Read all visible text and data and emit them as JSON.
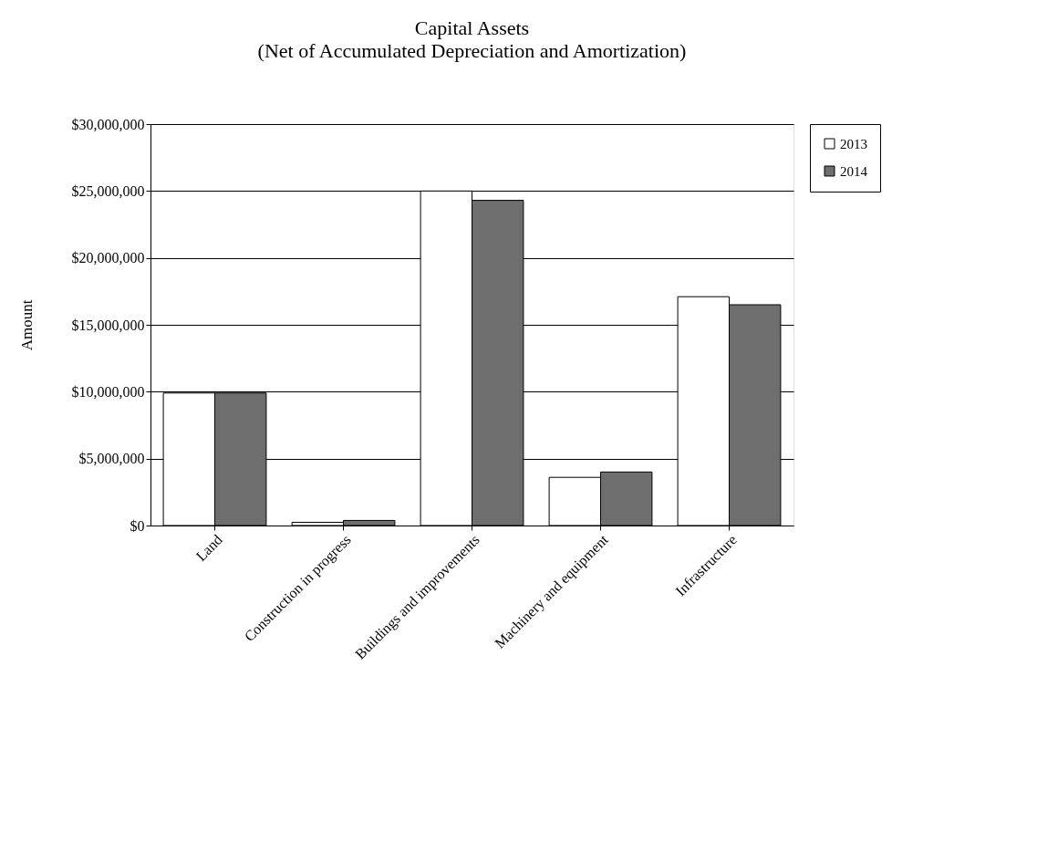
{
  "chart_data": {
    "type": "bar",
    "title": "Capital Assets",
    "subtitle": "(Net of  Accumulated Depreciation and Amortization)",
    "ylabel": "Amount",
    "categories": [
      "Land",
      "Construction in progress",
      "Buildings and improvements",
      "Machinery and equipment",
      "Infrastructure"
    ],
    "series": [
      {
        "name": "2013",
        "color": "#ffffff",
        "values": [
          9900000,
          240000,
          25000000,
          3600000,
          17100000
        ]
      },
      {
        "name": "2014",
        "color": "#6e6e6e",
        "values": [
          9900000,
          380000,
          24300000,
          4000000,
          16500000
        ]
      }
    ],
    "ylim": [
      0,
      30000000
    ],
    "yticks": [
      {
        "value": 0,
        "label": "$0"
      },
      {
        "value": 5000000,
        "label": "$5,000,000"
      },
      {
        "value": 10000000,
        "label": "$10,000,000"
      },
      {
        "value": 15000000,
        "label": "$15,000,000"
      },
      {
        "value": 20000000,
        "label": "$20,000,000"
      },
      {
        "value": 25000000,
        "label": "$25,000,000"
      },
      {
        "value": 30000000,
        "label": "$30,000,000"
      }
    ],
    "grid": "y",
    "legend": "right"
  }
}
